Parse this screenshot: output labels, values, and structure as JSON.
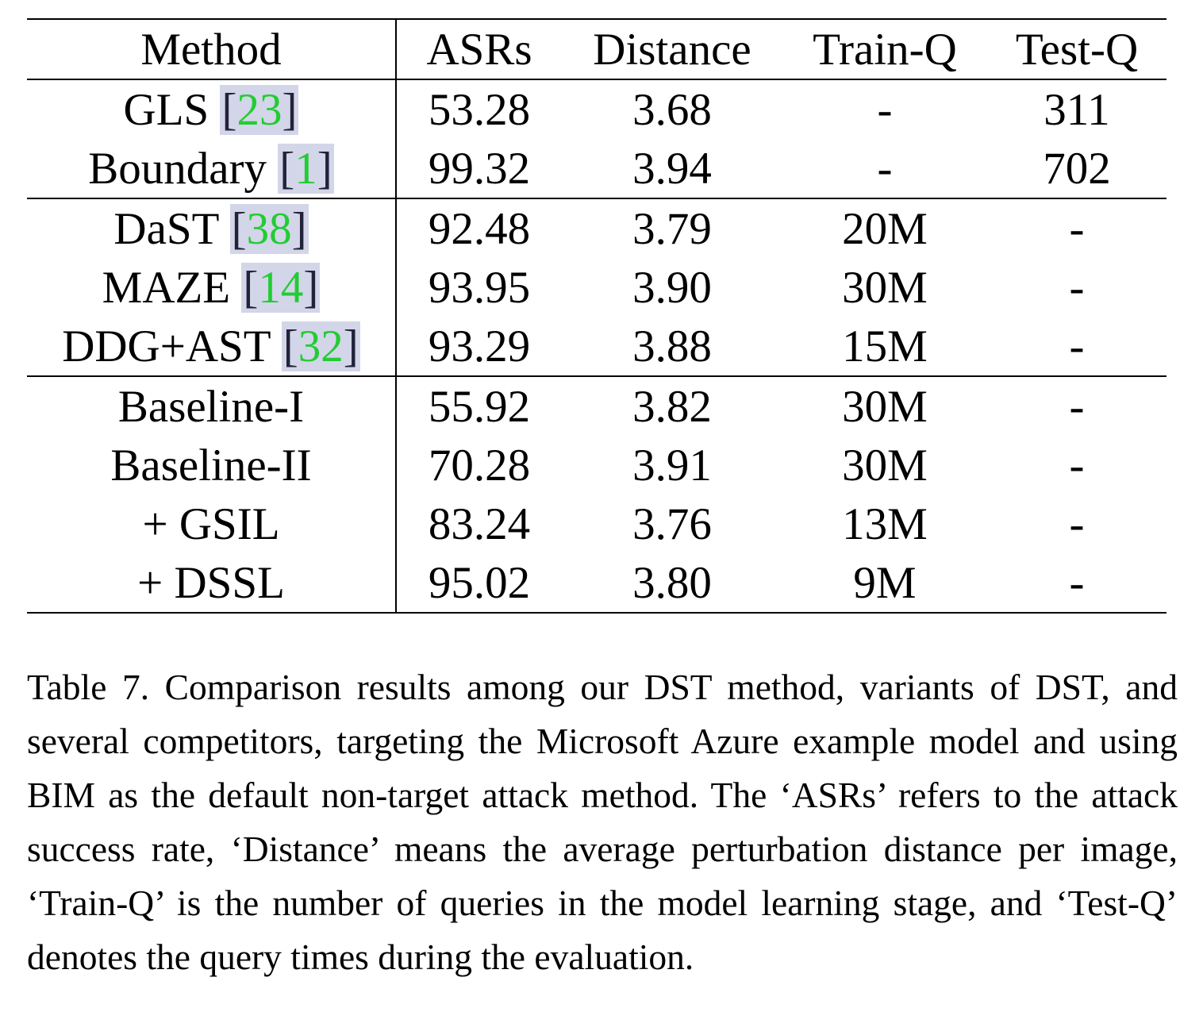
{
  "table": {
    "headers": [
      "Method",
      "ASRs",
      "Distance",
      "Train-Q",
      "Test-Q"
    ],
    "groups": [
      [
        {
          "method": "GLS",
          "cite": "23",
          "asrs": "53.28",
          "distance": "3.68",
          "train_q": "-",
          "test_q": "311"
        },
        {
          "method": "Boundary",
          "cite": "1",
          "asrs": "99.32",
          "distance": "3.94",
          "train_q": "-",
          "test_q": "702"
        }
      ],
      [
        {
          "method": "DaST",
          "cite": "38",
          "asrs": "92.48",
          "distance": "3.79",
          "train_q": "20M",
          "test_q": "-"
        },
        {
          "method": "MAZE",
          "cite": "14",
          "asrs": "93.95",
          "distance": "3.90",
          "train_q": "30M",
          "test_q": "-"
        },
        {
          "method": "DDG+AST",
          "cite": "32",
          "asrs": "93.29",
          "distance": "3.88",
          "train_q": "15M",
          "test_q": "-"
        }
      ],
      [
        {
          "method": "Baseline-I",
          "asrs": "55.92",
          "distance": "3.82",
          "train_q": "30M",
          "test_q": "-"
        },
        {
          "method": "Baseline-II",
          "asrs": "70.28",
          "distance": "3.91",
          "train_q": "30M",
          "test_q": "-"
        },
        {
          "method": "+ GSIL",
          "asrs": "83.24",
          "distance": "3.76",
          "train_q": "13M",
          "test_q": "-"
        },
        {
          "method": "+ DSSL",
          "asrs": "95.02",
          "distance": "3.80",
          "train_q": "9M",
          "test_q": "-"
        }
      ]
    ]
  },
  "caption": "Table 7.  Comparison results among our DST method, variants of DST, and several competitors, targeting the Microsoft Azure example model and using BIM as the default non-target attack method. The ‘ASRs’ refers to the attack success rate, ‘Distance’ means the average perturbation distance per image, ‘Train-Q’ is the number of queries in the model learning stage, and ‘Test-Q’ denotes the query times during the evaluation.",
  "colors": {
    "citation_number": "#22cc33",
    "citation_highlight": "#d3d5e8"
  }
}
